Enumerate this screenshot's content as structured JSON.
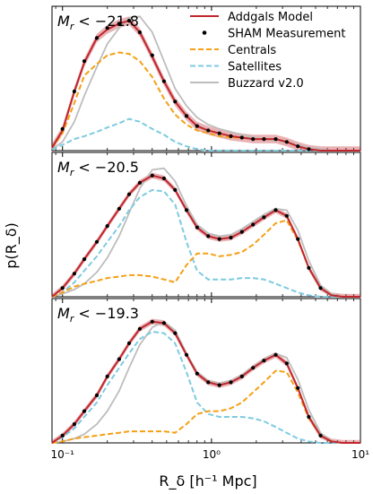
{
  "chart_data": {
    "type": "line",
    "xlabel": "R_δ [h⁻¹ Mpc]",
    "ylabel": "p(R_δ)",
    "xscale": "log",
    "xlim": [
      0.085,
      10
    ],
    "xticks": [
      {
        "value": 0.1,
        "label": "10⁻¹"
      },
      {
        "value": 1,
        "label": "10⁰"
      },
      {
        "value": 10,
        "label": "10¹"
      }
    ],
    "legend": {
      "placement": "top-right",
      "entries": [
        "Addgals Model",
        "SHAM Measurement",
        "Centrals",
        "Satellites",
        "Buzzard v2.0"
      ]
    },
    "series_style": {
      "Addgals Model": {
        "color": "#c0262d"
      },
      "SHAM Measurement": {
        "color": "#000000"
      },
      "Centrals": {
        "color": "#f5a015"
      },
      "Satellites": {
        "color": "#7ecbe0"
      },
      "Buzzard v2.0": {
        "color": "#bdbdbd"
      }
    },
    "panels": [
      {
        "label": "M_r < −21.8",
        "ylim": [
          0,
          1.0
        ],
        "x": [
          0.085,
          0.1,
          0.12,
          0.14,
          0.17,
          0.2,
          0.24,
          0.28,
          0.33,
          0.4,
          0.48,
          0.57,
          0.68,
          0.8,
          0.95,
          1.13,
          1.35,
          1.6,
          1.9,
          2.25,
          2.7,
          3.2,
          3.8,
          4.5,
          5.4,
          6.4,
          7.6,
          9.0,
          10.0
        ],
        "addgals": [
          0.02,
          0.14,
          0.41,
          0.61,
          0.78,
          0.84,
          0.88,
          0.9,
          0.82,
          0.65,
          0.48,
          0.34,
          0.24,
          0.17,
          0.14,
          0.12,
          0.1,
          0.09,
          0.08,
          0.08,
          0.08,
          0.06,
          0.03,
          0.01,
          0.0,
          0.0,
          0.0,
          0.0,
          0.0
        ],
        "band": 0.03,
        "sham": [
          null,
          0.15,
          0.41,
          0.62,
          0.78,
          0.85,
          0.88,
          0.9,
          0.82,
          0.66,
          0.48,
          0.34,
          0.24,
          0.17,
          0.14,
          0.12,
          0.1,
          0.09,
          0.08,
          0.08,
          0.08,
          0.06,
          0.03,
          0.01,
          null,
          null,
          null,
          null,
          null
        ],
        "centrals": [
          0.02,
          0.12,
          0.33,
          0.52,
          0.6,
          0.66,
          0.68,
          0.67,
          0.62,
          0.51,
          0.36,
          0.25,
          0.18,
          0.14,
          0.12,
          0.1,
          0.09,
          0.09,
          0.08,
          0.08,
          0.08,
          0.06,
          0.03,
          0.01,
          0.0,
          0.0,
          0.0,
          0.0,
          0.0
        ],
        "satellites": [
          0.01,
          0.04,
          0.08,
          0.1,
          0.13,
          0.16,
          0.19,
          0.22,
          0.2,
          0.15,
          0.11,
          0.06,
          0.03,
          0.01,
          0.0,
          0.0,
          0.0,
          0.0,
          0.0,
          0.0,
          0.0,
          0.0,
          0.0,
          0.0,
          0.0,
          0.0,
          0.0,
          0.0,
          0.0
        ],
        "buzzard": [
          0.01,
          0.06,
          0.2,
          0.38,
          0.58,
          0.74,
          0.85,
          0.92,
          0.93,
          0.82,
          0.62,
          0.43,
          0.31,
          0.23,
          0.18,
          0.15,
          0.13,
          0.11,
          0.09,
          0.08,
          0.07,
          0.06,
          0.04,
          0.02,
          0.01,
          0.0,
          0.0,
          0.0,
          0.0
        ]
      },
      {
        "label": "M_r < −20.5",
        "ylim": [
          0,
          1.0
        ],
        "x": [
          0.085,
          0.1,
          0.12,
          0.14,
          0.17,
          0.2,
          0.24,
          0.28,
          0.33,
          0.4,
          0.48,
          0.57,
          0.68,
          0.8,
          0.95,
          1.13,
          1.35,
          1.6,
          1.9,
          2.25,
          2.7,
          3.2,
          3.8,
          4.5,
          5.4,
          6.4,
          7.6,
          9.0,
          10.0
        ],
        "addgals": [
          0.0,
          0.06,
          0.16,
          0.26,
          0.38,
          0.49,
          0.61,
          0.71,
          0.79,
          0.84,
          0.82,
          0.74,
          0.6,
          0.48,
          0.42,
          0.4,
          0.41,
          0.45,
          0.5,
          0.55,
          0.6,
          0.56,
          0.4,
          0.2,
          0.06,
          0.01,
          0.0,
          0.0,
          0.0
        ],
        "band": 0.02,
        "sham": [
          null,
          0.06,
          0.16,
          0.26,
          0.38,
          0.49,
          0.61,
          0.71,
          0.79,
          0.84,
          0.82,
          0.74,
          0.6,
          0.48,
          0.42,
          0.4,
          0.41,
          0.45,
          0.5,
          0.55,
          0.6,
          0.56,
          0.4,
          0.2,
          0.06,
          null,
          null,
          null,
          null
        ],
        "centrals": [
          0.0,
          0.03,
          0.07,
          0.09,
          0.11,
          0.13,
          0.14,
          0.15,
          0.15,
          0.14,
          0.12,
          0.1,
          0.22,
          0.3,
          0.3,
          0.28,
          0.29,
          0.31,
          0.36,
          0.43,
          0.51,
          0.53,
          0.39,
          0.2,
          0.06,
          0.01,
          0.0,
          0.0,
          0.0
        ],
        "satellites": [
          0.0,
          0.03,
          0.1,
          0.18,
          0.28,
          0.38,
          0.49,
          0.6,
          0.69,
          0.74,
          0.73,
          0.64,
          0.38,
          0.18,
          0.12,
          0.12,
          0.12,
          0.13,
          0.13,
          0.12,
          0.09,
          0.06,
          0.03,
          0.01,
          0.0,
          0.0,
          0.0,
          0.0,
          0.0
        ],
        "buzzard": [
          0.0,
          0.02,
          0.05,
          0.09,
          0.17,
          0.27,
          0.42,
          0.58,
          0.75,
          0.88,
          0.89,
          0.8,
          0.63,
          0.5,
          0.44,
          0.42,
          0.43,
          0.47,
          0.52,
          0.57,
          0.61,
          0.6,
          0.46,
          0.25,
          0.08,
          0.02,
          0.0,
          0.0,
          0.0
        ]
      },
      {
        "label": "M_r < −19.3",
        "ylim": [
          0,
          1.0
        ],
        "x": [
          0.085,
          0.1,
          0.12,
          0.14,
          0.17,
          0.2,
          0.24,
          0.28,
          0.33,
          0.4,
          0.48,
          0.57,
          0.68,
          0.8,
          0.95,
          1.13,
          1.35,
          1.6,
          1.9,
          2.25,
          2.7,
          3.2,
          3.8,
          4.5,
          5.4,
          6.4,
          7.6,
          9.0,
          10.0
        ],
        "addgals": [
          0.0,
          0.05,
          0.13,
          0.22,
          0.33,
          0.46,
          0.58,
          0.69,
          0.79,
          0.84,
          0.83,
          0.76,
          0.61,
          0.48,
          0.42,
          0.4,
          0.42,
          0.46,
          0.52,
          0.57,
          0.61,
          0.55,
          0.38,
          0.18,
          0.05,
          0.01,
          0.0,
          0.0,
          0.0
        ],
        "band": 0.02,
        "sham": [
          null,
          0.05,
          0.13,
          0.22,
          0.33,
          0.46,
          0.58,
          0.69,
          0.79,
          0.84,
          0.83,
          0.76,
          0.61,
          0.48,
          0.42,
          0.4,
          0.42,
          0.46,
          0.52,
          0.57,
          0.61,
          0.55,
          0.38,
          0.18,
          0.05,
          null,
          null,
          null,
          null
        ],
        "centrals": [
          0.0,
          0.01,
          0.03,
          0.04,
          0.05,
          0.06,
          0.07,
          0.08,
          0.08,
          0.08,
          0.08,
          0.07,
          0.13,
          0.2,
          0.22,
          0.22,
          0.24,
          0.28,
          0.35,
          0.42,
          0.5,
          0.49,
          0.35,
          0.17,
          0.05,
          0.01,
          0.0,
          0.0,
          0.0
        ],
        "satellites": [
          0.0,
          0.04,
          0.1,
          0.18,
          0.28,
          0.4,
          0.52,
          0.62,
          0.72,
          0.77,
          0.76,
          0.69,
          0.49,
          0.28,
          0.2,
          0.18,
          0.18,
          0.18,
          0.17,
          0.15,
          0.11,
          0.07,
          0.03,
          0.01,
          0.0,
          0.0,
          0.0,
          0.0,
          0.0
        ],
        "buzzard": [
          0.0,
          0.01,
          0.03,
          0.06,
          0.13,
          0.22,
          0.36,
          0.52,
          0.68,
          0.8,
          0.84,
          0.78,
          0.62,
          0.49,
          0.43,
          0.41,
          0.43,
          0.47,
          0.53,
          0.58,
          0.62,
          0.59,
          0.44,
          0.23,
          0.07,
          0.01,
          0.0,
          0.0,
          0.0
        ]
      }
    ]
  }
}
